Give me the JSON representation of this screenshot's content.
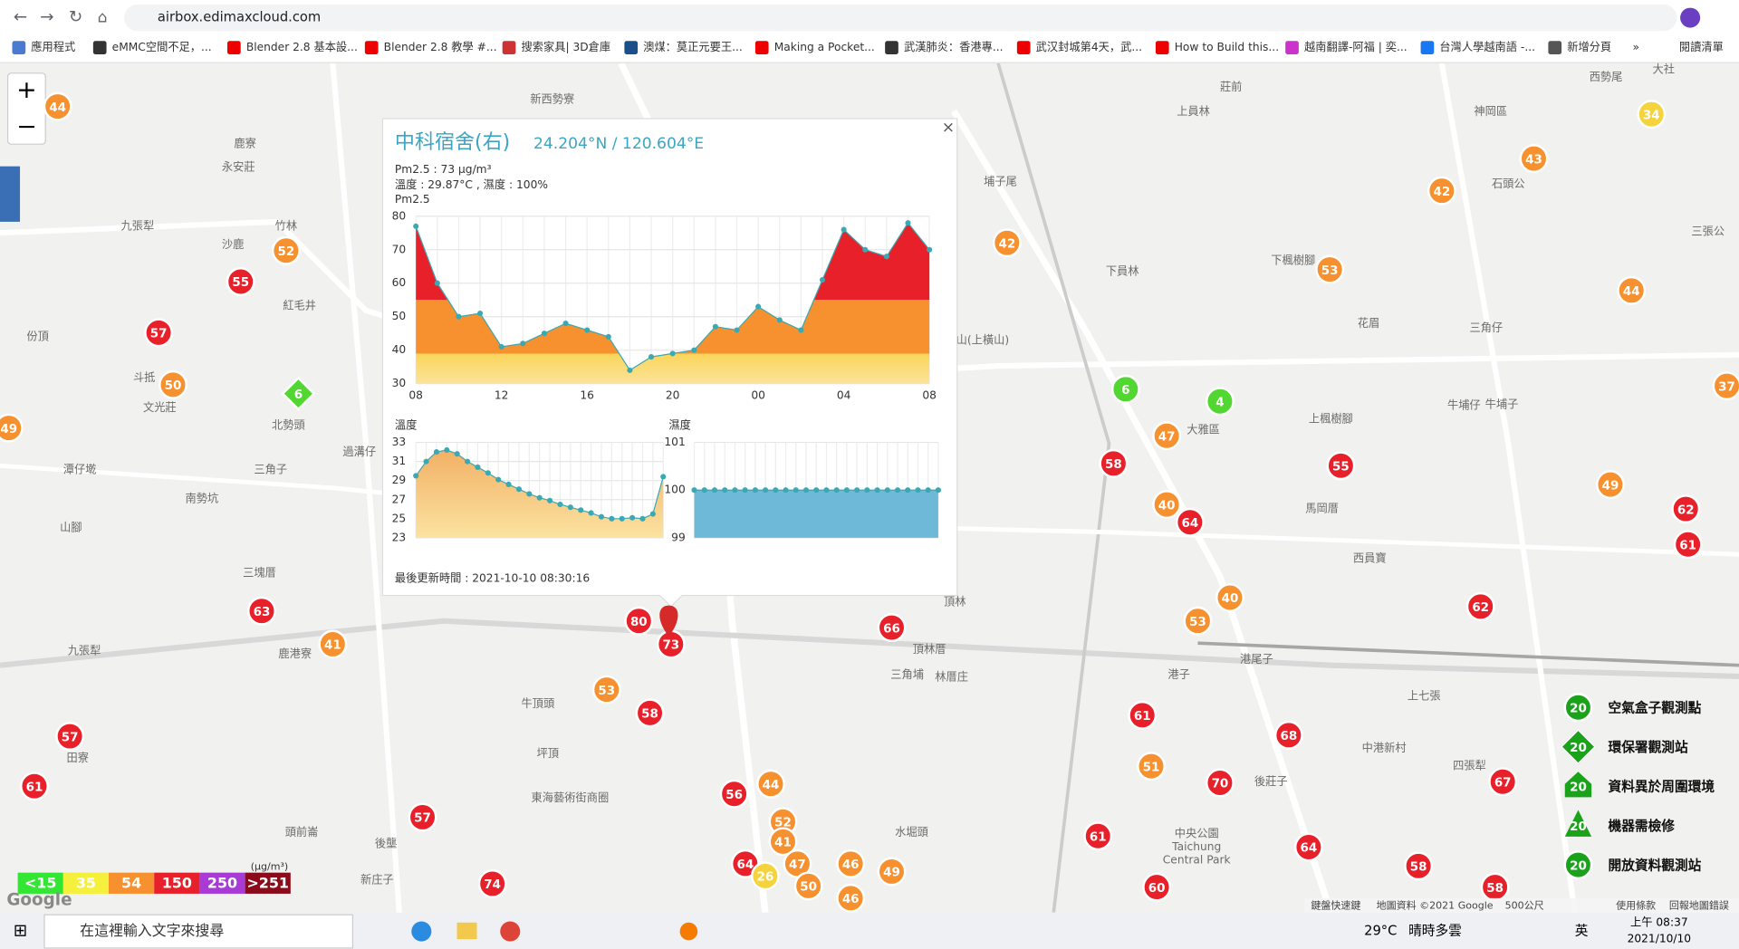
{
  "browser": {
    "url": "airbox.edimaxcloud.com",
    "bookmarks": [
      "應用程式",
      "eMMC空間不足，...",
      "Blender 2.8 基本設...",
      "Blender 2.8 教學 #...",
      "搜索家具| 3D倉庫",
      "澳煤：莫正元要王...",
      "Making a Pocket...",
      "武漢肺炎：香港專...",
      "武汉封城第4天，武...",
      "How to Build this...",
      "越南翻譯-阿福 | 奕...",
      "台灣人學越南語 -...",
      "新增分頁",
      "»",
      "閱讀清單"
    ]
  },
  "map": {
    "markers": [
      {
        "value": 44,
        "color": "#f7902e"
      },
      {
        "value": 52,
        "color": "#f7902e"
      },
      {
        "value": 55,
        "color": "#e8202a"
      },
      {
        "value": 57,
        "color": "#e8202a"
      },
      {
        "value": 50,
        "color": "#f7902e"
      },
      {
        "value": 49,
        "color": "#f7902e"
      },
      {
        "value": 6,
        "color": "#52d631"
      },
      {
        "value": 63,
        "color": "#e8202a"
      },
      {
        "value": 41,
        "color": "#f7902e"
      },
      {
        "value": 57,
        "color": "#e8202a"
      },
      {
        "value": 61,
        "color": "#e8202a"
      },
      {
        "value": 57,
        "color": "#e8202a"
      },
      {
        "value": 74,
        "color": "#e8202a"
      },
      {
        "value": 80,
        "color": "#e8202a"
      },
      {
        "value": 73,
        "color": "#e8202a"
      },
      {
        "value": 53,
        "color": "#f7902e"
      },
      {
        "value": 58,
        "color": "#e8202a"
      },
      {
        "value": 66,
        "color": "#e8202a"
      },
      {
        "value": 42,
        "color": "#f7902e"
      },
      {
        "value": 6,
        "color": "#52d631"
      },
      {
        "value": 4,
        "color": "#52d631"
      },
      {
        "value": 47,
        "color": "#f7902e"
      },
      {
        "value": 58,
        "color": "#e8202a"
      },
      {
        "value": 40,
        "color": "#f7902e"
      },
      {
        "value": 64,
        "color": "#e8202a"
      },
      {
        "value": 40,
        "color": "#f7902e"
      },
      {
        "value": 53,
        "color": "#f7902e"
      },
      {
        "value": 55,
        "color": "#e8202a"
      },
      {
        "value": 53,
        "color": "#f7902e"
      },
      {
        "value": 42,
        "color": "#f7902e"
      },
      {
        "value": 43,
        "color": "#f7902e"
      },
      {
        "value": 34,
        "color": "#f5d33c"
      },
      {
        "value": 44,
        "color": "#f7902e"
      },
      {
        "value": 37,
        "color": "#f7902e"
      },
      {
        "value": 49,
        "color": "#f7902e"
      },
      {
        "value": 62,
        "color": "#e8202a"
      },
      {
        "value": 61,
        "color": "#e8202a"
      },
      {
        "value": 62,
        "color": "#e8202a"
      },
      {
        "value": 61,
        "color": "#e8202a"
      },
      {
        "value": 68,
        "color": "#e8202a"
      },
      {
        "value": 51,
        "color": "#f7902e"
      },
      {
        "value": 70,
        "color": "#e8202a"
      },
      {
        "value": 61,
        "color": "#e8202a"
      },
      {
        "value": 60,
        "color": "#e8202a"
      },
      {
        "value": 64,
        "color": "#e8202a"
      },
      {
        "value": 58,
        "color": "#e8202a"
      },
      {
        "value": 56,
        "color": "#e8202a"
      },
      {
        "value": 44,
        "color": "#f7902e"
      },
      {
        "value": 52,
        "color": "#f7902e"
      },
      {
        "value": 41,
        "color": "#f7902e"
      },
      {
        "value": 47,
        "color": "#f7902e"
      },
      {
        "value": 46,
        "color": "#f7902e"
      },
      {
        "value": 49,
        "color": "#f7902e"
      },
      {
        "value": 64,
        "color": "#e8202a"
      },
      {
        "value": 26,
        "color": "#f5d33c"
      },
      {
        "value": 50,
        "color": "#f7902e"
      },
      {
        "value": 46,
        "color": "#f7902e"
      },
      {
        "value": 67,
        "color": "#e8202a"
      },
      {
        "value": 58,
        "color": "#e8202a"
      }
    ],
    "places": [
      "新西勢寮",
      "鹿寮",
      "永安莊",
      "九張犁",
      "沙鹿",
      "竹林",
      "紅毛井",
      "份頂",
      "斗抵",
      "文光莊",
      "北勢頭",
      "三角子",
      "過溝仔",
      "南勢坑",
      "潭仔墘",
      "山腳",
      "三塊厝",
      "鹿港寮",
      "九張犁",
      "田寮",
      "後壟",
      "頭前崙",
      "新庄子",
      "牛頂頭",
      "坪頂",
      "東海藝術街商圈",
      "頂林厝",
      "林厝庄",
      "三角埔",
      "水堀頭",
      "大雅區",
      "下員林",
      "上員林",
      "花眉",
      "三角仔",
      "牛埔仔",
      "上楓樹腳",
      "馬岡厝",
      "西員寶",
      "港尾子",
      "港子",
      "中港新村",
      "後莊子",
      "四張犁",
      "神岡區",
      "石頭公",
      "西勢尾",
      "大社",
      "埔子尾",
      "三張公",
      "下楓樹腳",
      "上七張",
      "中央公園",
      "Taichung",
      "Central Park",
      "山(上橫山)",
      "莊前",
      "頂林",
      "牛埔子"
    ],
    "footer": [
      "鍵盤快速鍵",
      "地圖資料 ©2021 Google",
      "500公尺",
      "使用條款",
      "回報地圖錯誤"
    ],
    "logo": "Google"
  },
  "popup": {
    "title": "中科宿舍(右)",
    "coords": "24.204°N / 120.604°E",
    "pm25": "Pm2.5 : 73 μg/m³",
    "temp_humidity": "溫度 : 29.87°C , 濕度 : 100%",
    "updated": "最後更新時間 : 2021-10-10 08:30:16",
    "close": "×"
  },
  "chart_data": [
    {
      "type": "area",
      "title": "Pm2.5",
      "categories": [
        "08",
        null,
        null,
        null,
        "12",
        null,
        null,
        null,
        "16",
        null,
        null,
        null,
        "20",
        null,
        null,
        null,
        "00",
        null,
        null,
        null,
        "04",
        null,
        null,
        null,
        "08"
      ],
      "values": [
        77,
        60,
        50,
        51,
        41,
        42,
        45,
        48,
        46,
        44,
        34,
        38,
        39,
        40,
        47,
        46,
        53,
        49,
        46,
        61,
        76,
        70,
        68,
        78,
        70
      ],
      "ylim": [
        30,
        80
      ],
      "yticks": [
        30,
        40,
        50,
        60,
        70,
        80
      ],
      "grid": true,
      "color": "#3aa9b3"
    },
    {
      "type": "area",
      "title": "溫度",
      "values": [
        29.5,
        31,
        32,
        32.2,
        31.8,
        31,
        30.4,
        29.8,
        29.1,
        28.6,
        28.1,
        27.6,
        27.2,
        26.9,
        26.5,
        26.2,
        25.9,
        25.6,
        25.2,
        25,
        25,
        25.1,
        25,
        25.5,
        29.4
      ],
      "ylim": [
        23,
        33
      ],
      "yticks": [
        23,
        25,
        27,
        29,
        31,
        33
      ],
      "grid": true,
      "color": "#3aa9b3"
    },
    {
      "type": "area",
      "title": "濕度",
      "values": [
        100,
        100,
        100,
        100,
        100,
        100,
        100,
        100,
        100,
        100,
        100,
        100,
        100,
        100,
        100,
        100,
        100,
        100,
        100,
        100,
        100,
        100,
        100,
        100,
        100
      ],
      "ylim": [
        99,
        101
      ],
      "yticks": [
        99,
        100,
        101
      ],
      "grid": true,
      "color": "#3aa9b3"
    }
  ],
  "legend": {
    "unit": "(μg/m³)",
    "levels": [
      {
        "label": "<15",
        "color": "#33e633"
      },
      {
        "label": 35,
        "color": "#f5f03c"
      },
      {
        "label": 54,
        "color": "#f7902e"
      },
      {
        "label": 150,
        "color": "#e8202a"
      },
      {
        "label": 250,
        "color": "#a83ad6"
      },
      {
        "label": ">251",
        "color": "#8c0b1a"
      }
    ],
    "stations": [
      {
        "label": "空氣盒子觀測點",
        "count": 20
      },
      {
        "label": "環保署觀測站",
        "count": 20
      },
      {
        "label": "資料異於周圍環境",
        "count": 20
      },
      {
        "label": "機器需檢修",
        "count": 20
      },
      {
        "label": "開放資料觀測站",
        "count": 20
      }
    ]
  },
  "taskbar": {
    "search": "在這裡輸入文字來搜尋",
    "temperature": "29°C",
    "weather": "晴時多雲",
    "ime": "英",
    "time": "上午 08:37",
    "date": "2021/10/10"
  }
}
